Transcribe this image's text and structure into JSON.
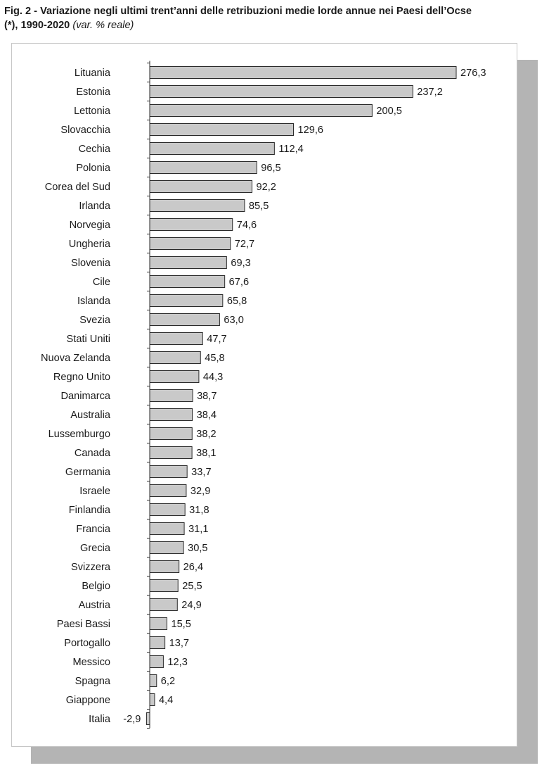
{
  "header": {
    "title_bold": "Fig. 2 - Variazione negli ultimi trent’anni delle retribuzioni medie lorde annue nei Paesi dell’Ocse",
    "title_bold_line2": "(*), 1990-2020",
    "subtitle_italic": "(var. % reale)"
  },
  "chart_data": {
    "type": "bar",
    "orientation": "horizontal",
    "title": "Fig. 2 - Variazione negli ultimi trent’anni delle retribuzioni medie lorde annue nei Paesi dell’Ocse (*), 1990-2020",
    "subtitle": "(var. % reale)",
    "xlabel": "",
    "ylabel": "",
    "grid": false,
    "categories": [
      "Lituania",
      "Estonia",
      "Lettonia",
      "Slovacchia",
      "Cechia",
      "Polonia",
      "Corea del Sud",
      "Irlanda",
      "Norvegia",
      "Ungheria",
      "Slovenia",
      "Cile",
      "Islanda",
      "Svezia",
      "Stati Uniti",
      "Nuova Zelanda",
      "Regno Unito",
      "Danimarca",
      "Australia",
      "Lussemburgo",
      "Canada",
      "Germania",
      "Israele",
      "Finlandia",
      "Francia",
      "Grecia",
      "Svizzera",
      "Belgio",
      "Austria",
      "Paesi Bassi",
      "Portogallo",
      "Messico",
      "Spagna",
      "Giappone",
      "Italia"
    ],
    "values": [
      276.3,
      237.2,
      200.5,
      129.6,
      112.4,
      96.5,
      92.2,
      85.5,
      74.6,
      72.7,
      69.3,
      67.6,
      65.8,
      63.0,
      47.7,
      45.8,
      44.3,
      38.7,
      38.4,
      38.2,
      38.1,
      33.7,
      32.9,
      31.8,
      31.1,
      30.5,
      26.4,
      25.5,
      24.9,
      15.5,
      13.7,
      12.3,
      6.2,
      4.4,
      -2.9
    ],
    "value_labels": [
      "276,3",
      "237,2",
      "200,5",
      "129,6",
      "112,4",
      "96,5",
      "92,2",
      "85,5",
      "74,6",
      "72,7",
      "69,3",
      "67,6",
      "65,8",
      "63,0",
      "47,7",
      "45,8",
      "44,3",
      "38,7",
      "38,4",
      "38,2",
      "38,1",
      "33,7",
      "32,9",
      "31,8",
      "31,1",
      "30,5",
      "26,4",
      "25,5",
      "24,9",
      "15,5",
      "13,7",
      "12,3",
      "6,2",
      "4,4",
      "-2,9"
    ],
    "colors": {
      "bar": "#c9c9c9",
      "bar_stroke": "#2a2a2a",
      "shadow": "#b4b4b4"
    }
  }
}
